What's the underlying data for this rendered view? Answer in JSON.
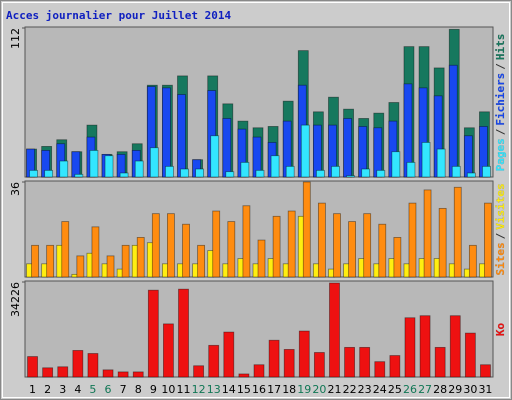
{
  "chart_data": [
    {
      "type": "bar",
      "title": "Acces journalier pour Juillet 2014",
      "legend_separator": "/",
      "ylim": [
        0,
        112
      ],
      "yticks": [
        112
      ],
      "series": [
        {
          "name": "Pages",
          "color": "#33e6ff",
          "values": [
            5,
            5,
            12,
            2,
            20,
            16,
            3,
            12,
            22,
            8,
            6,
            6,
            31,
            4,
            11,
            5,
            16,
            8,
            39,
            5,
            8,
            1,
            6,
            5,
            19,
            11,
            26,
            21,
            8,
            3,
            8
          ]
        },
        {
          "name": "Fichiers",
          "color": "#1848f0",
          "values": [
            21,
            20,
            25,
            19,
            30,
            17,
            17,
            20,
            68,
            67,
            62,
            13,
            65,
            44,
            36,
            30,
            26,
            42,
            69,
            39,
            39,
            44,
            38,
            37,
            42,
            70,
            67,
            61,
            84,
            31,
            38
          ]
        },
        {
          "name": "Hits",
          "color": "#16785e",
          "values": [
            21,
            23,
            28,
            19,
            39,
            17,
            19,
            25,
            69,
            69,
            76,
            13,
            76,
            55,
            42,
            37,
            38,
            57,
            95,
            49,
            60,
            51,
            44,
            48,
            56,
            98,
            98,
            82,
            111,
            37,
            49
          ]
        }
      ]
    },
    {
      "type": "bar",
      "legend_separator": "/",
      "ylim": [
        0,
        36
      ],
      "yticks": [
        36
      ],
      "series": [
        {
          "name": "Sites",
          "color": "#ff8c10",
          "values": [
            12,
            12,
            21,
            8,
            19,
            8,
            12,
            15,
            24,
            24,
            20,
            12,
            25,
            21,
            27,
            14,
            23,
            25,
            36,
            28,
            24,
            21,
            24,
            20,
            15,
            28,
            33,
            26,
            34,
            12,
            28
          ]
        },
        {
          "name": "Visites",
          "color": "#ffee10",
          "values": [
            5,
            5,
            12,
            1,
            9,
            5,
            3,
            12,
            13,
            5,
            5,
            5,
            10,
            5,
            7,
            5,
            7,
            5,
            23,
            5,
            3,
            5,
            7,
            5,
            7,
            5,
            7,
            7,
            5,
            3,
            5
          ]
        }
      ]
    },
    {
      "type": "bar",
      "ylim": [
        0,
        34226
      ],
      "yticks": [
        34226
      ],
      "categories": [
        "1",
        "2",
        "3",
        "4",
        "5",
        "6",
        "7",
        "8",
        "9",
        "10",
        "11",
        "12",
        "13",
        "14",
        "15",
        "16",
        "17",
        "18",
        "19",
        "20",
        "21",
        "22",
        "23",
        "24",
        "25",
        "26",
        "27",
        "28",
        "29",
        "30",
        "31"
      ],
      "category_colors": [
        "#000",
        "#000",
        "#000",
        "#000",
        "#117755",
        "#117755",
        "#000",
        "#000",
        "#000",
        "#000",
        "#000",
        "#117755",
        "#117755",
        "#000",
        "#000",
        "#000",
        "#000",
        "#000",
        "#117755",
        "#117755",
        "#000",
        "#000",
        "#000",
        "#000",
        "#000",
        "#117755",
        "#117755",
        "#000",
        "#000",
        "#000",
        "#000"
      ],
      "series": [
        {
          "name": "Ko",
          "color": "#ee1111",
          "values": [
            7360,
            3312,
            3680,
            9568,
            8464,
            2576,
            1840,
            1840,
            31280,
            19136,
            31648,
            4048,
            11408,
            16192,
            1104,
            4416,
            13248,
            9936,
            16560,
            8832,
            33856,
            10672,
            10672,
            5520,
            7728,
            21344,
            22080,
            10672,
            22080,
            15824,
            4416
          ]
        }
      ]
    }
  ]
}
